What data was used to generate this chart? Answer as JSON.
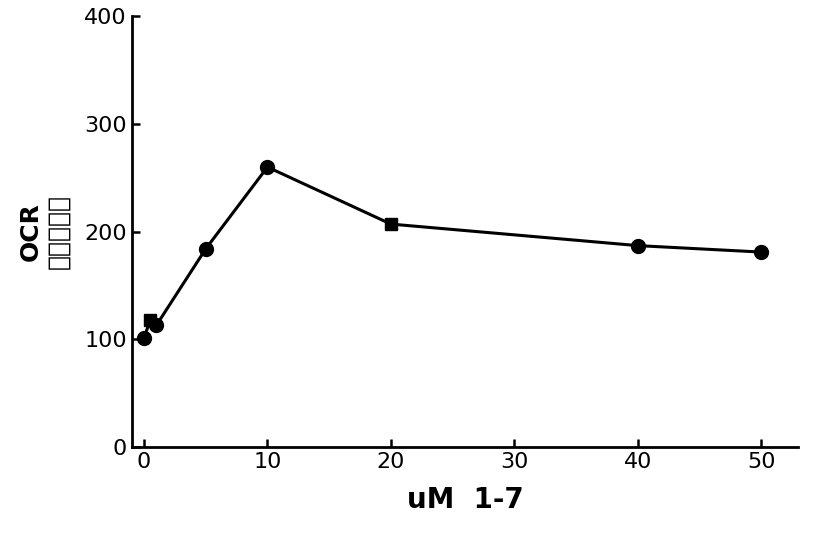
{
  "x": [
    0,
    0.5,
    1,
    5,
    10,
    20,
    40,
    50
  ],
  "y": [
    101,
    118,
    113,
    184,
    260,
    207,
    187,
    181
  ],
  "marker_styles": [
    "o",
    "s",
    "o",
    "o",
    "o",
    "s",
    "o",
    "o"
  ],
  "marker_sizes": [
    10,
    9,
    10,
    10,
    10,
    9,
    10,
    10
  ],
  "line_color": "#000000",
  "marker_color": "#000000",
  "xlabel": "uM  1-7",
  "ylabel_line1": "OCR",
  "ylabel_line2": "（基础％）",
  "xlim": [
    -1,
    53
  ],
  "ylim": [
    0,
    400
  ],
  "xticks": [
    0,
    10,
    20,
    30,
    40,
    50
  ],
  "yticks": [
    0,
    100,
    200,
    300,
    400
  ],
  "xlabel_fontsize": 20,
  "ylabel_fontsize": 18,
  "tick_fontsize": 16,
  "background_color": "#ffffff",
  "linewidth": 2.2,
  "title": ""
}
